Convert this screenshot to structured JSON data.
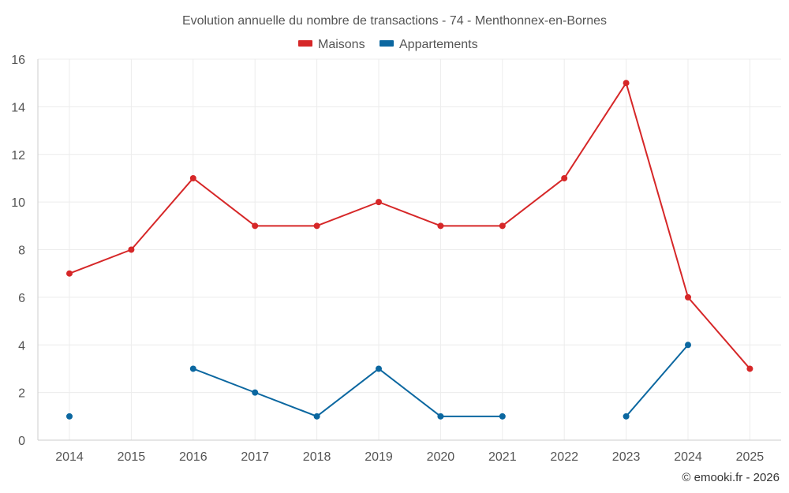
{
  "chart_data": {
    "type": "line",
    "title": "Evolution annuelle du nombre de transactions - 74 - Menthonnex-en-Bornes",
    "xlabel": "",
    "ylabel": "",
    "categories": [
      "2014",
      "2015",
      "2016",
      "2017",
      "2018",
      "2019",
      "2020",
      "2021",
      "2022",
      "2023",
      "2024",
      "2025"
    ],
    "ylim": [
      0,
      16
    ],
    "yticks": [
      0,
      2,
      4,
      6,
      8,
      10,
      12,
      14,
      16
    ],
    "grid": true,
    "legend_position": "top-center",
    "series": [
      {
        "name": "Maisons",
        "color": "#d62728",
        "values": [
          7,
          8,
          11,
          9,
          9,
          10,
          9,
          9,
          11,
          15,
          6,
          3
        ]
      },
      {
        "name": "Appartements",
        "color": "#0b67a0",
        "values": [
          1,
          null,
          3,
          2,
          1,
          3,
          1,
          1,
          null,
          1,
          4,
          null
        ]
      }
    ]
  },
  "credit": "© emooki.fr - 2026"
}
